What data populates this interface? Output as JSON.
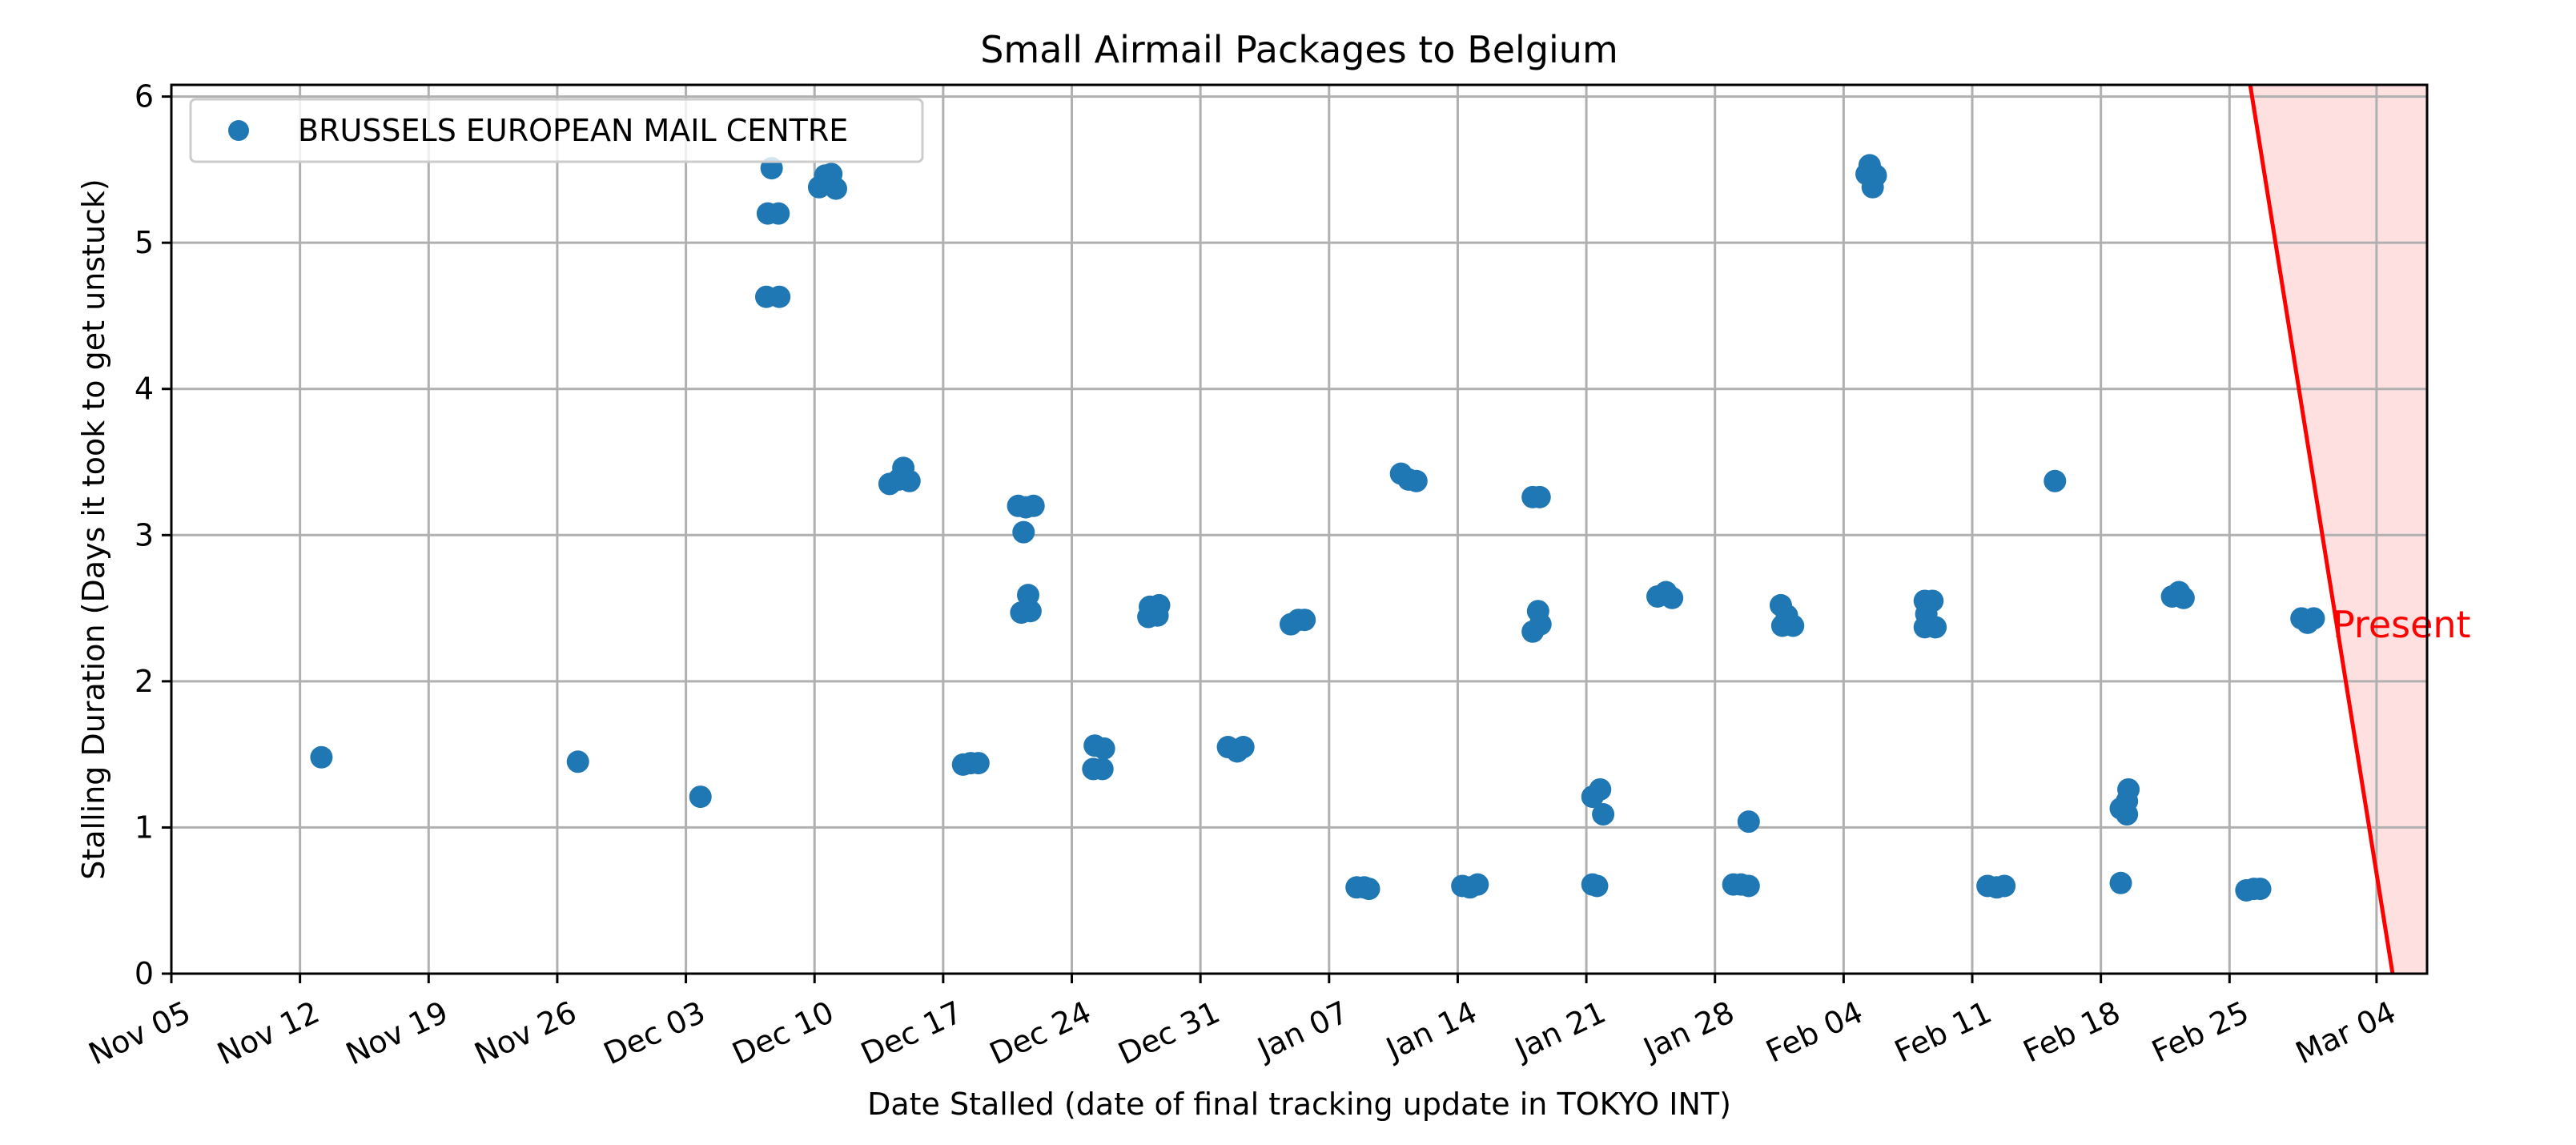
{
  "chart_data": {
    "type": "scatter",
    "title": "Small Airmail Packages to Belgium",
    "xlabel": "Date Stalled (date of final tracking update in TOKYO INT)",
    "ylabel": "Stalling Duration (Days it took to get unstuck)",
    "xlim": [
      "2023-11-05",
      "2024-03-06T18:00"
    ],
    "ylim": [
      0,
      6.08
    ],
    "x_ticks": [
      "Nov 05",
      "Nov 12",
      "Nov 19",
      "Nov 26",
      "Dec 03",
      "Dec 10",
      "Dec 17",
      "Dec 24",
      "Dec 31",
      "Jan 07",
      "Jan 14",
      "Jan 21",
      "Jan 28",
      "Feb 04",
      "Feb 11",
      "Feb 18",
      "Feb 25",
      "Mar 04"
    ],
    "x_tick_dates": [
      "2023-11-05",
      "2023-11-12",
      "2023-11-19",
      "2023-11-26",
      "2023-12-03",
      "2023-12-10",
      "2023-12-17",
      "2023-12-24",
      "2023-12-31",
      "2024-01-07",
      "2024-01-14",
      "2024-01-21",
      "2024-01-28",
      "2024-02-04",
      "2024-02-11",
      "2024-02-18",
      "2024-02-25",
      "2024-03-04"
    ],
    "y_ticks": [
      0,
      1,
      2,
      3,
      4,
      5,
      6
    ],
    "grid": true,
    "legend_placement": "upper-left",
    "series": [
      {
        "name": "BRUSSELS EUROPEAN MAIL CENTRE",
        "color": "#1f77b4",
        "points": [
          {
            "x": "2023-11-13T04:00",
            "y": 1.48
          },
          {
            "x": "2023-11-27T03:00",
            "y": 1.45
          },
          {
            "x": "2023-12-03T19:00",
            "y": 1.21
          },
          {
            "x": "2023-12-07T09:00",
            "y": 4.63
          },
          {
            "x": "2023-12-08T02:00",
            "y": 4.63
          },
          {
            "x": "2023-12-07T11:00",
            "y": 5.2
          },
          {
            "x": "2023-12-08T01:00",
            "y": 5.2
          },
          {
            "x": "2023-12-07T16:00",
            "y": 5.51
          },
          {
            "x": "2023-12-10T06:00",
            "y": 5.38
          },
          {
            "x": "2023-12-10T14:00",
            "y": 5.46
          },
          {
            "x": "2023-12-10T22:00",
            "y": 5.47
          },
          {
            "x": "2023-12-11T04:00",
            "y": 5.37
          },
          {
            "x": "2023-12-14T02:00",
            "y": 3.35
          },
          {
            "x": "2023-12-14T14:00",
            "y": 3.38
          },
          {
            "x": "2023-12-14T20:00",
            "y": 3.46
          },
          {
            "x": "2023-12-15T04:00",
            "y": 3.37
          },
          {
            "x": "2023-12-18T02:00",
            "y": 1.43
          },
          {
            "x": "2023-12-18T12:00",
            "y": 1.44
          },
          {
            "x": "2023-12-18T22:00",
            "y": 1.44
          },
          {
            "x": "2023-12-21T02:00",
            "y": 3.2
          },
          {
            "x": "2023-12-21T12:00",
            "y": 3.19
          },
          {
            "x": "2023-12-21T22:00",
            "y": 3.2
          },
          {
            "x": "2023-12-21T09:00",
            "y": 3.02
          },
          {
            "x": "2023-12-21T06:00",
            "y": 2.47
          },
          {
            "x": "2023-12-21T18:00",
            "y": 2.48
          },
          {
            "x": "2023-12-21T15:00",
            "y": 2.59
          },
          {
            "x": "2023-12-25T06:00",
            "y": 1.56
          },
          {
            "x": "2023-12-25T18:00",
            "y": 1.54
          },
          {
            "x": "2023-12-25T04:00",
            "y": 1.4
          },
          {
            "x": "2023-12-25T16:00",
            "y": 1.4
          },
          {
            "x": "2023-12-28T06:00",
            "y": 2.51
          },
          {
            "x": "2023-12-28T18:00",
            "y": 2.52
          },
          {
            "x": "2023-12-28T04:00",
            "y": 2.44
          },
          {
            "x": "2023-12-28T16:00",
            "y": 2.45
          },
          {
            "x": "2024-01-01T12:00",
            "y": 1.55
          },
          {
            "x": "2024-01-02T00:00",
            "y": 1.52
          },
          {
            "x": "2024-01-02T08:00",
            "y": 1.55
          },
          {
            "x": "2024-01-04T22:00",
            "y": 2.39
          },
          {
            "x": "2024-01-05T08:00",
            "y": 2.42
          },
          {
            "x": "2024-01-05T16:00",
            "y": 2.42
          },
          {
            "x": "2024-01-08T12:00",
            "y": 0.59
          },
          {
            "x": "2024-01-08T22:00",
            "y": 0.59
          },
          {
            "x": "2024-01-09T04:00",
            "y": 0.58
          },
          {
            "x": "2024-01-10T22:00",
            "y": 3.42
          },
          {
            "x": "2024-01-11T08:00",
            "y": 3.38
          },
          {
            "x": "2024-01-11T18:00",
            "y": 3.37
          },
          {
            "x": "2024-01-14T06:00",
            "y": 0.6
          },
          {
            "x": "2024-01-14T16:00",
            "y": 0.59
          },
          {
            "x": "2024-01-15T02:00",
            "y": 0.61
          },
          {
            "x": "2024-01-18T02:00",
            "y": 3.26
          },
          {
            "x": "2024-01-18T11:00",
            "y": 3.26
          },
          {
            "x": "2024-01-18T02:00",
            "y": 2.34
          },
          {
            "x": "2024-01-18T12:00",
            "y": 2.39
          },
          {
            "x": "2024-01-18T09:00",
            "y": 2.48
          },
          {
            "x": "2024-01-21T08:00",
            "y": 0.61
          },
          {
            "x": "2024-01-21T14:00",
            "y": 0.6
          },
          {
            "x": "2024-01-21T08:00",
            "y": 1.21
          },
          {
            "x": "2024-01-21T18:00",
            "y": 1.26
          },
          {
            "x": "2024-01-21T22:00",
            "y": 1.09
          },
          {
            "x": "2024-01-24T21:00",
            "y": 2.58
          },
          {
            "x": "2024-01-25T08:00",
            "y": 2.61
          },
          {
            "x": "2024-01-25T16:00",
            "y": 2.57
          },
          {
            "x": "2024-01-29T00:00",
            "y": 0.61
          },
          {
            "x": "2024-01-29T10:00",
            "y": 0.61
          },
          {
            "x": "2024-01-29T20:00",
            "y": 0.6
          },
          {
            "x": "2024-01-29T20:00",
            "y": 1.04
          },
          {
            "x": "2024-01-31T14:00",
            "y": 2.52
          },
          {
            "x": "2024-01-31T22:00",
            "y": 2.45
          },
          {
            "x": "2024-01-31T16:00",
            "y": 2.38
          },
          {
            "x": "2024-02-01T06:00",
            "y": 2.38
          },
          {
            "x": "2024-02-05T06:00",
            "y": 5.47
          },
          {
            "x": "2024-02-05T10:00",
            "y": 5.53
          },
          {
            "x": "2024-02-05T18:00",
            "y": 5.46
          },
          {
            "x": "2024-02-05T14:00",
            "y": 5.38
          },
          {
            "x": "2024-02-08T10:00",
            "y": 2.55
          },
          {
            "x": "2024-02-08T20:00",
            "y": 2.55
          },
          {
            "x": "2024-02-08T12:00",
            "y": 2.46
          },
          {
            "x": "2024-02-08T10:00",
            "y": 2.37
          },
          {
            "x": "2024-02-09T00:00",
            "y": 2.37
          },
          {
            "x": "2024-02-11T20:00",
            "y": 0.6
          },
          {
            "x": "2024-02-12T08:00",
            "y": 0.59
          },
          {
            "x": "2024-02-12T18:00",
            "y": 0.6
          },
          {
            "x": "2024-02-15T12:00",
            "y": 3.37
          },
          {
            "x": "2024-02-19T02:00",
            "y": 0.62
          },
          {
            "x": "2024-02-19T02:00",
            "y": 1.13
          },
          {
            "x": "2024-02-19T10:00",
            "y": 1.09
          },
          {
            "x": "2024-02-19T12:00",
            "y": 1.26
          },
          {
            "x": "2024-02-19T10:00",
            "y": 1.18
          },
          {
            "x": "2024-02-21T21:00",
            "y": 2.58
          },
          {
            "x": "2024-02-22T06:00",
            "y": 2.61
          },
          {
            "x": "2024-02-22T12:00",
            "y": 2.57
          },
          {
            "x": "2024-02-25T22:00",
            "y": 0.57
          },
          {
            "x": "2024-02-26T08:00",
            "y": 0.58
          },
          {
            "x": "2024-02-26T16:00",
            "y": 0.58
          },
          {
            "x": "2024-02-28T22:00",
            "y": 2.43
          },
          {
            "x": "2024-02-29T06:00",
            "y": 2.4
          },
          {
            "x": "2024-02-29T14:00",
            "y": 2.43
          }
        ]
      }
    ],
    "present_line": {
      "label": "Present",
      "color": "#ff0000",
      "shade_color": "#ffe0e0",
      "from": {
        "x": "2024-02-26T03:00",
        "y": 6.08
      },
      "to": {
        "x": "2024-03-04T21:00",
        "y": 0
      }
    }
  }
}
